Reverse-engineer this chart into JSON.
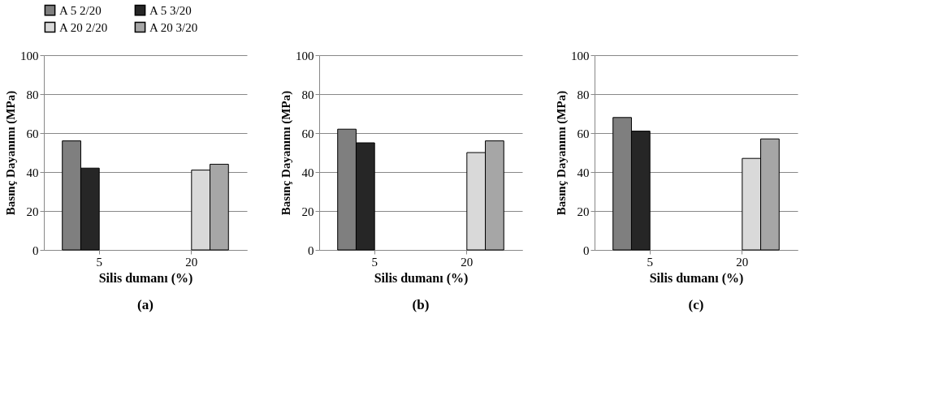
{
  "chart_data": [
    {
      "type": "bar",
      "categories": [
        "5",
        "20"
      ],
      "xlabel": "Silis dumanı (%)",
      "ylabel": "Basınç Dayanımı (MPa)",
      "ylim": [
        0,
        100
      ],
      "yticks": [
        0,
        20,
        40,
        60,
        80,
        100
      ],
      "grid": "y",
      "legend": "top",
      "annotations": [
        "(a)"
      ],
      "series": [
        {
          "name": "A 5 2/20",
          "color": "#7f7f7f",
          "values": [
            56,
            null
          ]
        },
        {
          "name": "A 5 3/20",
          "color": "#262626",
          "values": [
            42,
            null
          ]
        },
        {
          "name": "A 20 2/20",
          "color": "#d9d9d9",
          "values": [
            null,
            41
          ]
        },
        {
          "name": "A 20 3/20",
          "color": "#a6a6a6",
          "values": [
            null,
            44
          ]
        }
      ]
    },
    {
      "type": "bar",
      "categories": [
        "5",
        "20"
      ],
      "xlabel": "Silis dumanı (%)",
      "ylabel": "Basınç Dayanımı (MPa)",
      "ylim": [
        0,
        100
      ],
      "yticks": [
        0,
        20,
        40,
        60,
        80,
        100
      ],
      "grid": "y",
      "legend": "top",
      "annotations": [
        "(b)"
      ],
      "series": [
        {
          "name": "A 5 2/20",
          "color": "#7f7f7f",
          "values": [
            62,
            null
          ]
        },
        {
          "name": "A 5 3/20",
          "color": "#262626",
          "values": [
            55,
            null
          ]
        },
        {
          "name": "A 20 2/20",
          "color": "#d9d9d9",
          "values": [
            null,
            50
          ]
        },
        {
          "name": "A 20 3/20",
          "color": "#a6a6a6",
          "values": [
            null,
            56
          ]
        }
      ]
    },
    {
      "type": "bar",
      "categories": [
        "5",
        "20"
      ],
      "xlabel": "Silis dumanı (%)",
      "ylabel": "Basınç Dayanımı (MPa)",
      "ylim": [
        0,
        100
      ],
      "yticks": [
        0,
        20,
        40,
        60,
        80,
        100
      ],
      "grid": "y",
      "legend": "top",
      "annotations": [
        "(c)"
      ],
      "series": [
        {
          "name": "A 5 2/20",
          "color": "#7f7f7f",
          "values": [
            68,
            null
          ]
        },
        {
          "name": "A 5 3/20",
          "color": "#262626",
          "values": [
            61,
            null
          ]
        },
        {
          "name": "A 20 2/20",
          "color": "#d9d9d9",
          "values": [
            null,
            47
          ]
        },
        {
          "name": "A 20 3/20",
          "color": "#a6a6a6",
          "values": [
            null,
            57
          ]
        }
      ]
    }
  ]
}
